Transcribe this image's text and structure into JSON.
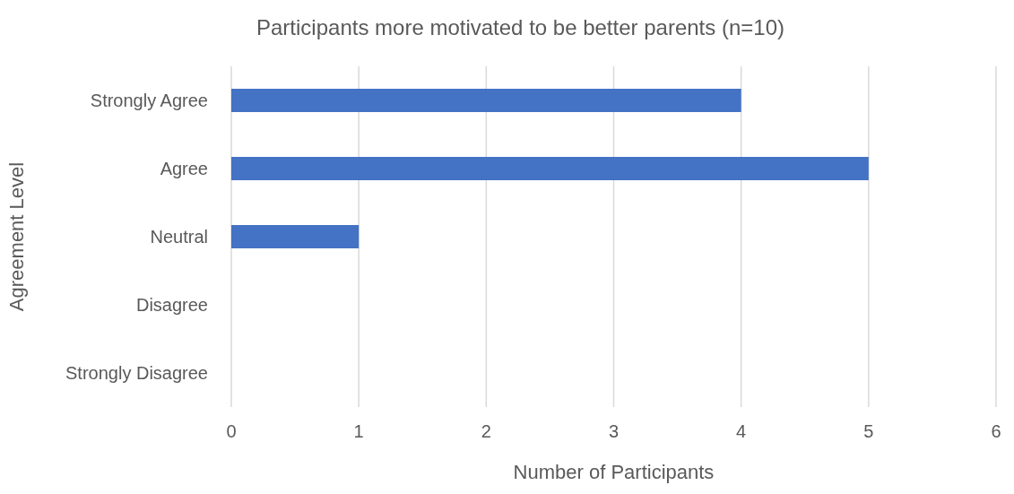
{
  "chart_data": {
    "type": "bar",
    "orientation": "horizontal",
    "title": "Participants more motivated to be better parents (n=10)",
    "xlabel": "Number of Participants",
    "ylabel": "Agreement Level",
    "categories": [
      "Strongly Agree",
      "Agree",
      "Neutral",
      "Disagree",
      "Strongly Disagree"
    ],
    "values": [
      4,
      5,
      1,
      0,
      0
    ],
    "color": "#4472c4",
    "xlim": [
      0,
      6
    ],
    "xticks": [
      0,
      1,
      2,
      3,
      4,
      5,
      6
    ],
    "grid": "x"
  }
}
